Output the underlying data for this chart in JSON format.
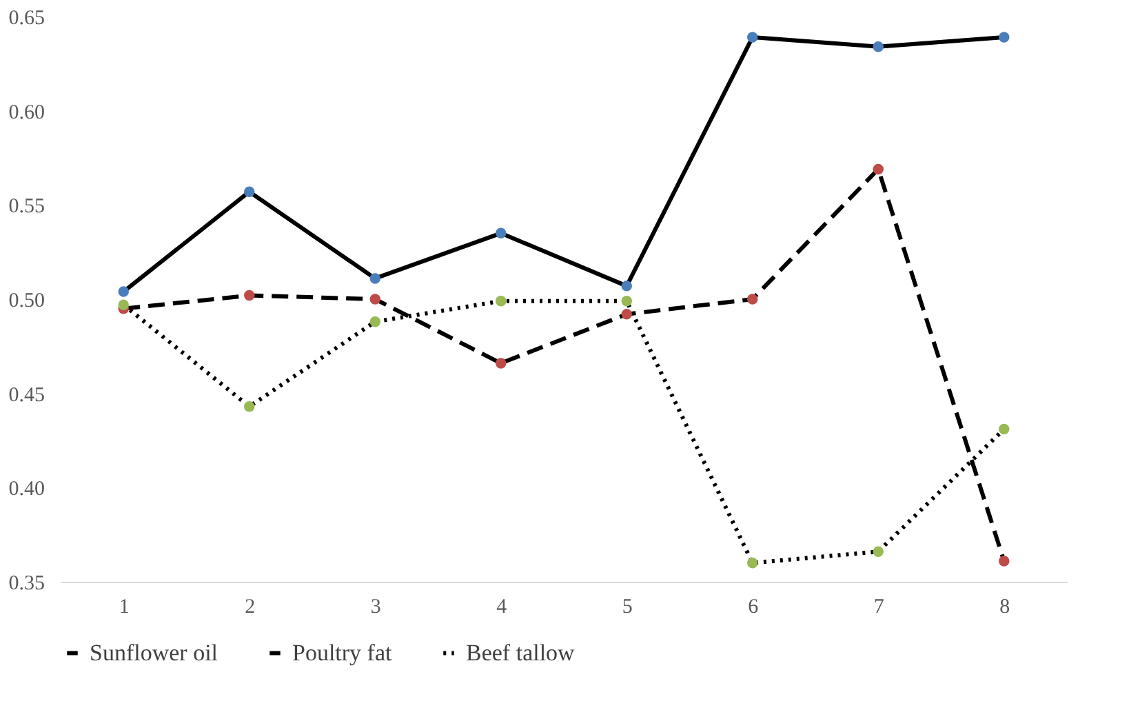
{
  "chart_data": {
    "type": "line",
    "categories": [
      "1",
      "2",
      "3",
      "4",
      "5",
      "6",
      "7",
      "8"
    ],
    "ylim": [
      0.35,
      0.65
    ],
    "yticks": [
      {
        "value": 0.35,
        "label": "0.35"
      },
      {
        "value": 0.4,
        "label": "0.40"
      },
      {
        "value": 0.45,
        "label": "0.45"
      },
      {
        "value": 0.5,
        "label": "0.50"
      },
      {
        "value": 0.55,
        "label": "0.55"
      },
      {
        "value": 0.6,
        "label": "0.60"
      },
      {
        "value": 0.65,
        "label": "0.65"
      }
    ],
    "grid": false,
    "legend": "bottom",
    "marker": "circle",
    "series": [
      {
        "name": "Sunflower oil",
        "color": "#4a7ebb",
        "line_style": "solid",
        "values": [
          0.504,
          0.557,
          0.511,
          0.535,
          0.507,
          0.639,
          0.634,
          0.639
        ]
      },
      {
        "name": "Poultry fat",
        "color": "#be4b48",
        "line_style": "dashed",
        "values": [
          0.495,
          0.502,
          0.5,
          0.466,
          0.492,
          0.5,
          0.569,
          0.361
        ]
      },
      {
        "name": "Beef tallow",
        "color": "#98b954",
        "line_style": "dotted",
        "values": [
          0.497,
          0.443,
          0.488,
          0.499,
          0.499,
          0.36,
          0.366,
          0.431
        ]
      }
    ]
  }
}
